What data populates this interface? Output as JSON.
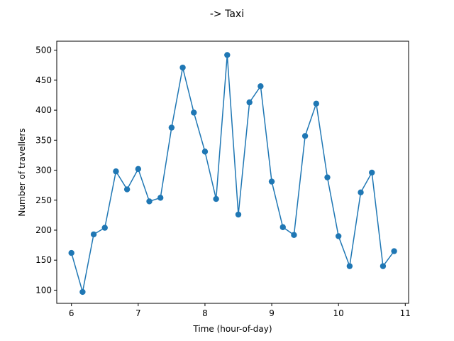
{
  "chart_data": {
    "type": "line",
    "title": "-> Taxi",
    "xlabel": "Time (hour-of-day)",
    "ylabel": "Number of travellers",
    "xlim": [
      5.78,
      11.05
    ],
    "ylim": [
      78,
      515
    ],
    "xticks": [
      6,
      7,
      8,
      9,
      10,
      11
    ],
    "yticks": [
      100,
      150,
      200,
      250,
      300,
      350,
      400,
      450,
      500
    ],
    "grid": false,
    "series": [
      {
        "color": "#1f77b4",
        "marker": "circle",
        "x": [
          6.0,
          6.1667,
          6.3333,
          6.5,
          6.6667,
          6.8333,
          7.0,
          7.1667,
          7.3333,
          7.5,
          7.6667,
          7.8333,
          8.0,
          8.1667,
          8.3333,
          8.5,
          8.6667,
          8.8333,
          9.0,
          9.1667,
          9.3333,
          9.5,
          9.6667,
          9.8333,
          10.0,
          10.1667,
          10.3333,
          10.5,
          10.6667,
          10.8333
        ],
        "y": [
          162,
          97,
          193,
          204,
          298,
          268,
          302,
          248,
          254,
          371,
          471,
          396,
          331,
          252,
          492,
          226,
          413,
          440,
          281,
          205,
          192,
          357,
          411,
          288,
          190,
          140,
          263,
          296,
          140,
          165
        ]
      }
    ]
  }
}
